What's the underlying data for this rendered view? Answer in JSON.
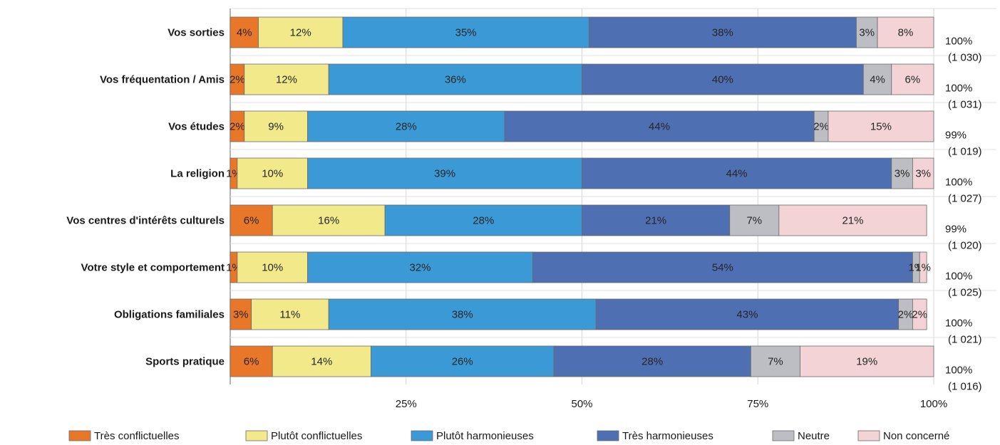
{
  "chart_data": {
    "type": "bar",
    "orientation": "horizontal",
    "stacked": true,
    "title": "",
    "xlabel": "",
    "ylabel": "",
    "xlim": [
      0,
      100
    ],
    "xticks": [
      "25%",
      "50%",
      "75%",
      "100%"
    ],
    "grid": true,
    "legend_position": "bottom",
    "categories": [
      "Vos sorties",
      "Vos fréquentation / Amis",
      "Vos études",
      "La religion",
      "Vos centres d'intérêts culturels",
      "Votre style et comportement",
      "Obligations familiales",
      "Sports pratique"
    ],
    "series": [
      {
        "name": "Très conflictuelles",
        "color": "#e8772a",
        "values": [
          4,
          2,
          2,
          1,
          6,
          1,
          3,
          6
        ],
        "labels": [
          "4%",
          "2%",
          "2%",
          "1%",
          "6%",
          "1%",
          "3%",
          "6%"
        ]
      },
      {
        "name": "Plutôt conflictuelles",
        "color": "#f1e98a",
        "values": [
          12,
          12,
          9,
          10,
          16,
          10,
          11,
          14
        ],
        "labels": [
          "12%",
          "12%",
          "9%",
          "10%",
          "16%",
          "10%",
          "11%",
          "14%"
        ]
      },
      {
        "name": "Plutôt harmonieuses",
        "color": "#3b9ad6",
        "values": [
          35,
          36,
          28,
          39,
          28,
          32,
          38,
          26
        ],
        "labels": [
          "35%",
          "36%",
          "28%",
          "39%",
          "28%",
          "32%",
          "38%",
          "26%"
        ]
      },
      {
        "name": "Très harmonieuses",
        "color": "#4f6fb3",
        "values": [
          38,
          40,
          44,
          44,
          21,
          54,
          43,
          28
        ],
        "labels": [
          "38%",
          "40%",
          "44%",
          "44%",
          "21%",
          "54%",
          "43%",
          "28%"
        ]
      },
      {
        "name": "Neutre",
        "color": "#bdbdc4",
        "values": [
          3,
          4,
          2,
          3,
          7,
          1,
          2,
          7
        ],
        "labels": [
          "3%",
          "4%",
          "2%",
          "3%",
          "7%",
          "1%",
          "2%",
          "7%"
        ]
      },
      {
        "name": "Non concerné",
        "color": "#f3d3d5",
        "values": [
          8,
          6,
          15,
          3,
          21,
          1,
          2,
          19
        ],
        "labels": [
          "8%",
          "6%",
          "15%",
          "3%",
          "21%",
          "1%",
          "2%",
          "19%"
        ]
      }
    ],
    "totals": [
      "100%",
      "100%",
      "99%",
      "100%",
      "99%",
      "100%",
      "100%",
      "100%"
    ],
    "counts": [
      "(1 030)",
      "(1 031)",
      "(1 019)",
      "(1 027)",
      "(1 020)",
      "(1 025)",
      "(1 021)",
      "(1 016)"
    ]
  }
}
